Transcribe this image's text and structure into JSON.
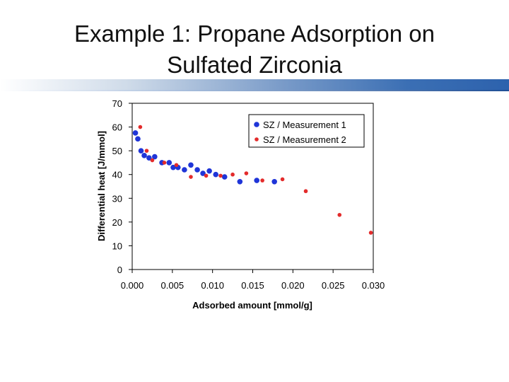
{
  "slide": {
    "title_line1": "Example 1: Propane Adsorption on",
    "title_line2": "Sulfated Zirconia"
  },
  "chart_data": {
    "type": "scatter",
    "title": "",
    "xlabel": "Adsorbed amount   [mmol/g]",
    "ylabel": "Differential heat  [J/mmol]",
    "xlim": [
      0.0,
      0.03
    ],
    "ylim": [
      0,
      70
    ],
    "xticks": [
      0.0,
      0.005,
      0.01,
      0.015,
      0.02,
      0.025,
      0.03
    ],
    "xtick_labels": [
      "0.000",
      "0.005",
      "0.010",
      "0.015",
      "0.020",
      "0.025",
      "0.030"
    ],
    "yticks": [
      0,
      10,
      20,
      30,
      40,
      50,
      60,
      70
    ],
    "ytick_labels": [
      "0",
      "10",
      "20",
      "30",
      "40",
      "50",
      "60",
      "70"
    ],
    "legend_position": "top-right",
    "grid": false,
    "series": [
      {
        "name": "SZ / Measurement 1",
        "color": "#1f35d8",
        "x": [
          0.0004,
          0.0007,
          0.0011,
          0.0015,
          0.0021,
          0.0028,
          0.0037,
          0.0046,
          0.0051,
          0.0057,
          0.0065,
          0.0073,
          0.0081,
          0.0088,
          0.0096,
          0.0104,
          0.0115,
          0.0134,
          0.0155,
          0.0177
        ],
        "y": [
          57.5,
          55,
          50,
          48,
          47,
          47.5,
          45,
          45,
          43,
          43,
          42,
          44,
          42,
          40.5,
          41.5,
          40,
          39,
          37,
          37.5,
          37
        ]
      },
      {
        "name": "SZ / Measurement 2",
        "color": "#e32b2b",
        "x": [
          0.001,
          0.0018,
          0.0025,
          0.004,
          0.0055,
          0.0073,
          0.0092,
          0.011,
          0.0125,
          0.0142,
          0.0162,
          0.0187,
          0.0216,
          0.0258,
          0.0297
        ],
        "y": [
          60,
          50,
          46,
          45,
          44,
          39,
          39.5,
          39.5,
          40,
          40.5,
          37.5,
          38,
          33,
          23,
          15.5
        ]
      }
    ]
  }
}
